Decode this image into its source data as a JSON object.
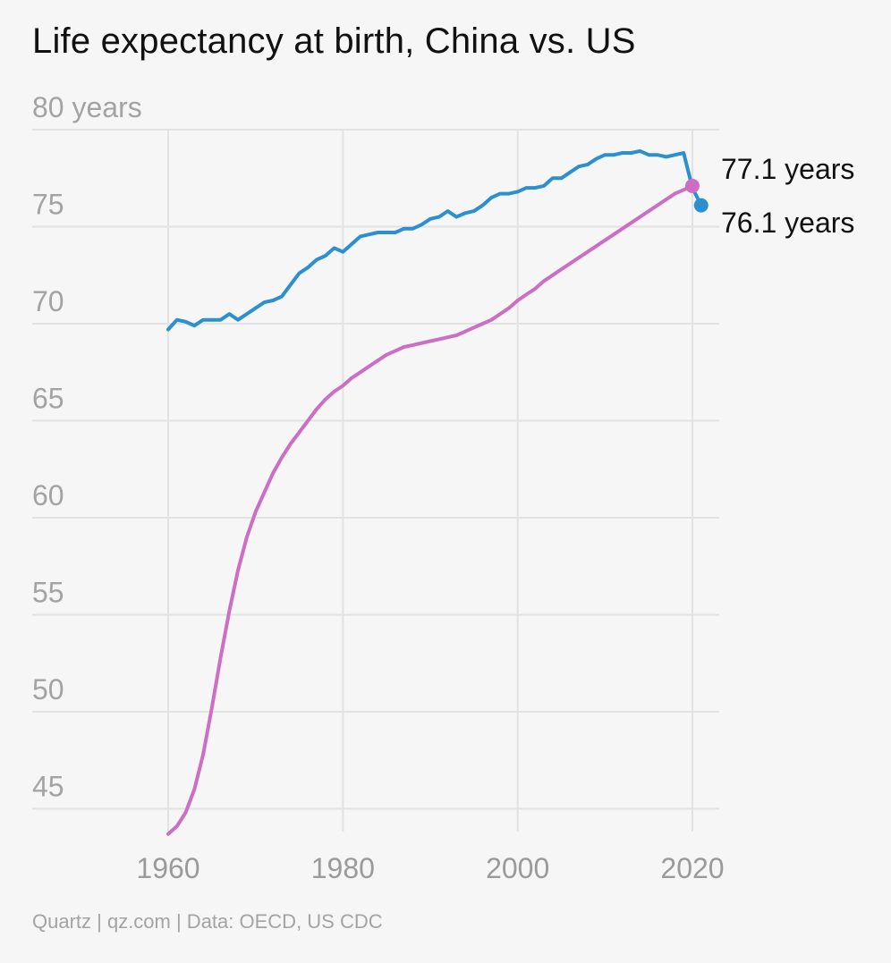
{
  "chart_data": {
    "type": "line",
    "title": "Life expectancy at birth, China vs. US",
    "y_unit_label": "80 years",
    "y_ticks": [
      "75",
      "70",
      "65",
      "60",
      "55",
      "50",
      "45"
    ],
    "x_ticks": [
      "1960",
      "1980",
      "2000",
      "2020"
    ],
    "xlim": [
      1960,
      2021
    ],
    "ylim": [
      43.5,
      80
    ],
    "grid": true,
    "series": [
      {
        "color": "#2b8fd0",
        "end_label": "76.1 years",
        "x": [
          1960,
          1961,
          1962,
          1963,
          1964,
          1965,
          1966,
          1967,
          1968,
          1969,
          1970,
          1971,
          1972,
          1973,
          1974,
          1975,
          1976,
          1977,
          1978,
          1979,
          1980,
          1981,
          1982,
          1983,
          1984,
          1985,
          1986,
          1987,
          1988,
          1989,
          1990,
          1991,
          1992,
          1993,
          1994,
          1995,
          1996,
          1997,
          1998,
          1999,
          2000,
          2001,
          2002,
          2003,
          2004,
          2005,
          2006,
          2007,
          2008,
          2009,
          2010,
          2011,
          2012,
          2013,
          2014,
          2015,
          2016,
          2017,
          2018,
          2019,
          2020,
          2021
        ],
        "y": [
          69.7,
          70.2,
          70.1,
          69.9,
          70.2,
          70.2,
          70.2,
          70.5,
          70.2,
          70.5,
          70.8,
          71.1,
          71.2,
          71.4,
          72.0,
          72.6,
          72.9,
          73.3,
          73.5,
          73.9,
          73.7,
          74.1,
          74.5,
          74.6,
          74.7,
          74.7,
          74.7,
          74.9,
          74.9,
          75.1,
          75.4,
          75.5,
          75.8,
          75.5,
          75.7,
          75.8,
          76.1,
          76.5,
          76.7,
          76.7,
          76.8,
          77.0,
          77.0,
          77.1,
          77.5,
          77.5,
          77.8,
          78.1,
          78.2,
          78.5,
          78.7,
          78.7,
          78.8,
          78.8,
          78.9,
          78.7,
          78.7,
          78.6,
          78.7,
          78.8,
          77.0,
          76.1
        ]
      },
      {
        "color": "#cc6ec3",
        "end_label": "77.1 years",
        "x": [
          1960,
          1961,
          1962,
          1963,
          1964,
          1965,
          1966,
          1967,
          1968,
          1969,
          1970,
          1971,
          1972,
          1973,
          1974,
          1975,
          1976,
          1977,
          1978,
          1979,
          1980,
          1981,
          1982,
          1983,
          1984,
          1985,
          1986,
          1987,
          1988,
          1989,
          1990,
          1991,
          1992,
          1993,
          1994,
          1995,
          1996,
          1997,
          1998,
          1999,
          2000,
          2001,
          2002,
          2003,
          2004,
          2005,
          2006,
          2007,
          2008,
          2009,
          2010,
          2011,
          2012,
          2013,
          2014,
          2015,
          2016,
          2017,
          2018,
          2019,
          2020
        ],
        "y": [
          43.7,
          44.1,
          44.8,
          46.0,
          47.8,
          50.2,
          52.8,
          55.2,
          57.3,
          59.0,
          60.3,
          61.3,
          62.3,
          63.1,
          63.8,
          64.4,
          65.0,
          65.6,
          66.1,
          66.5,
          66.8,
          67.2,
          67.5,
          67.8,
          68.1,
          68.4,
          68.6,
          68.8,
          68.9,
          69.0,
          69.1,
          69.2,
          69.3,
          69.4,
          69.6,
          69.8,
          70.0,
          70.2,
          70.5,
          70.8,
          71.2,
          71.5,
          71.8,
          72.2,
          72.5,
          72.8,
          73.1,
          73.4,
          73.7,
          74.0,
          74.3,
          74.6,
          74.9,
          75.2,
          75.5,
          75.8,
          76.1,
          76.4,
          76.7,
          76.9,
          77.1
        ]
      }
    ]
  },
  "footer": "Quartz | qz.com | Data: OECD, US CDC"
}
